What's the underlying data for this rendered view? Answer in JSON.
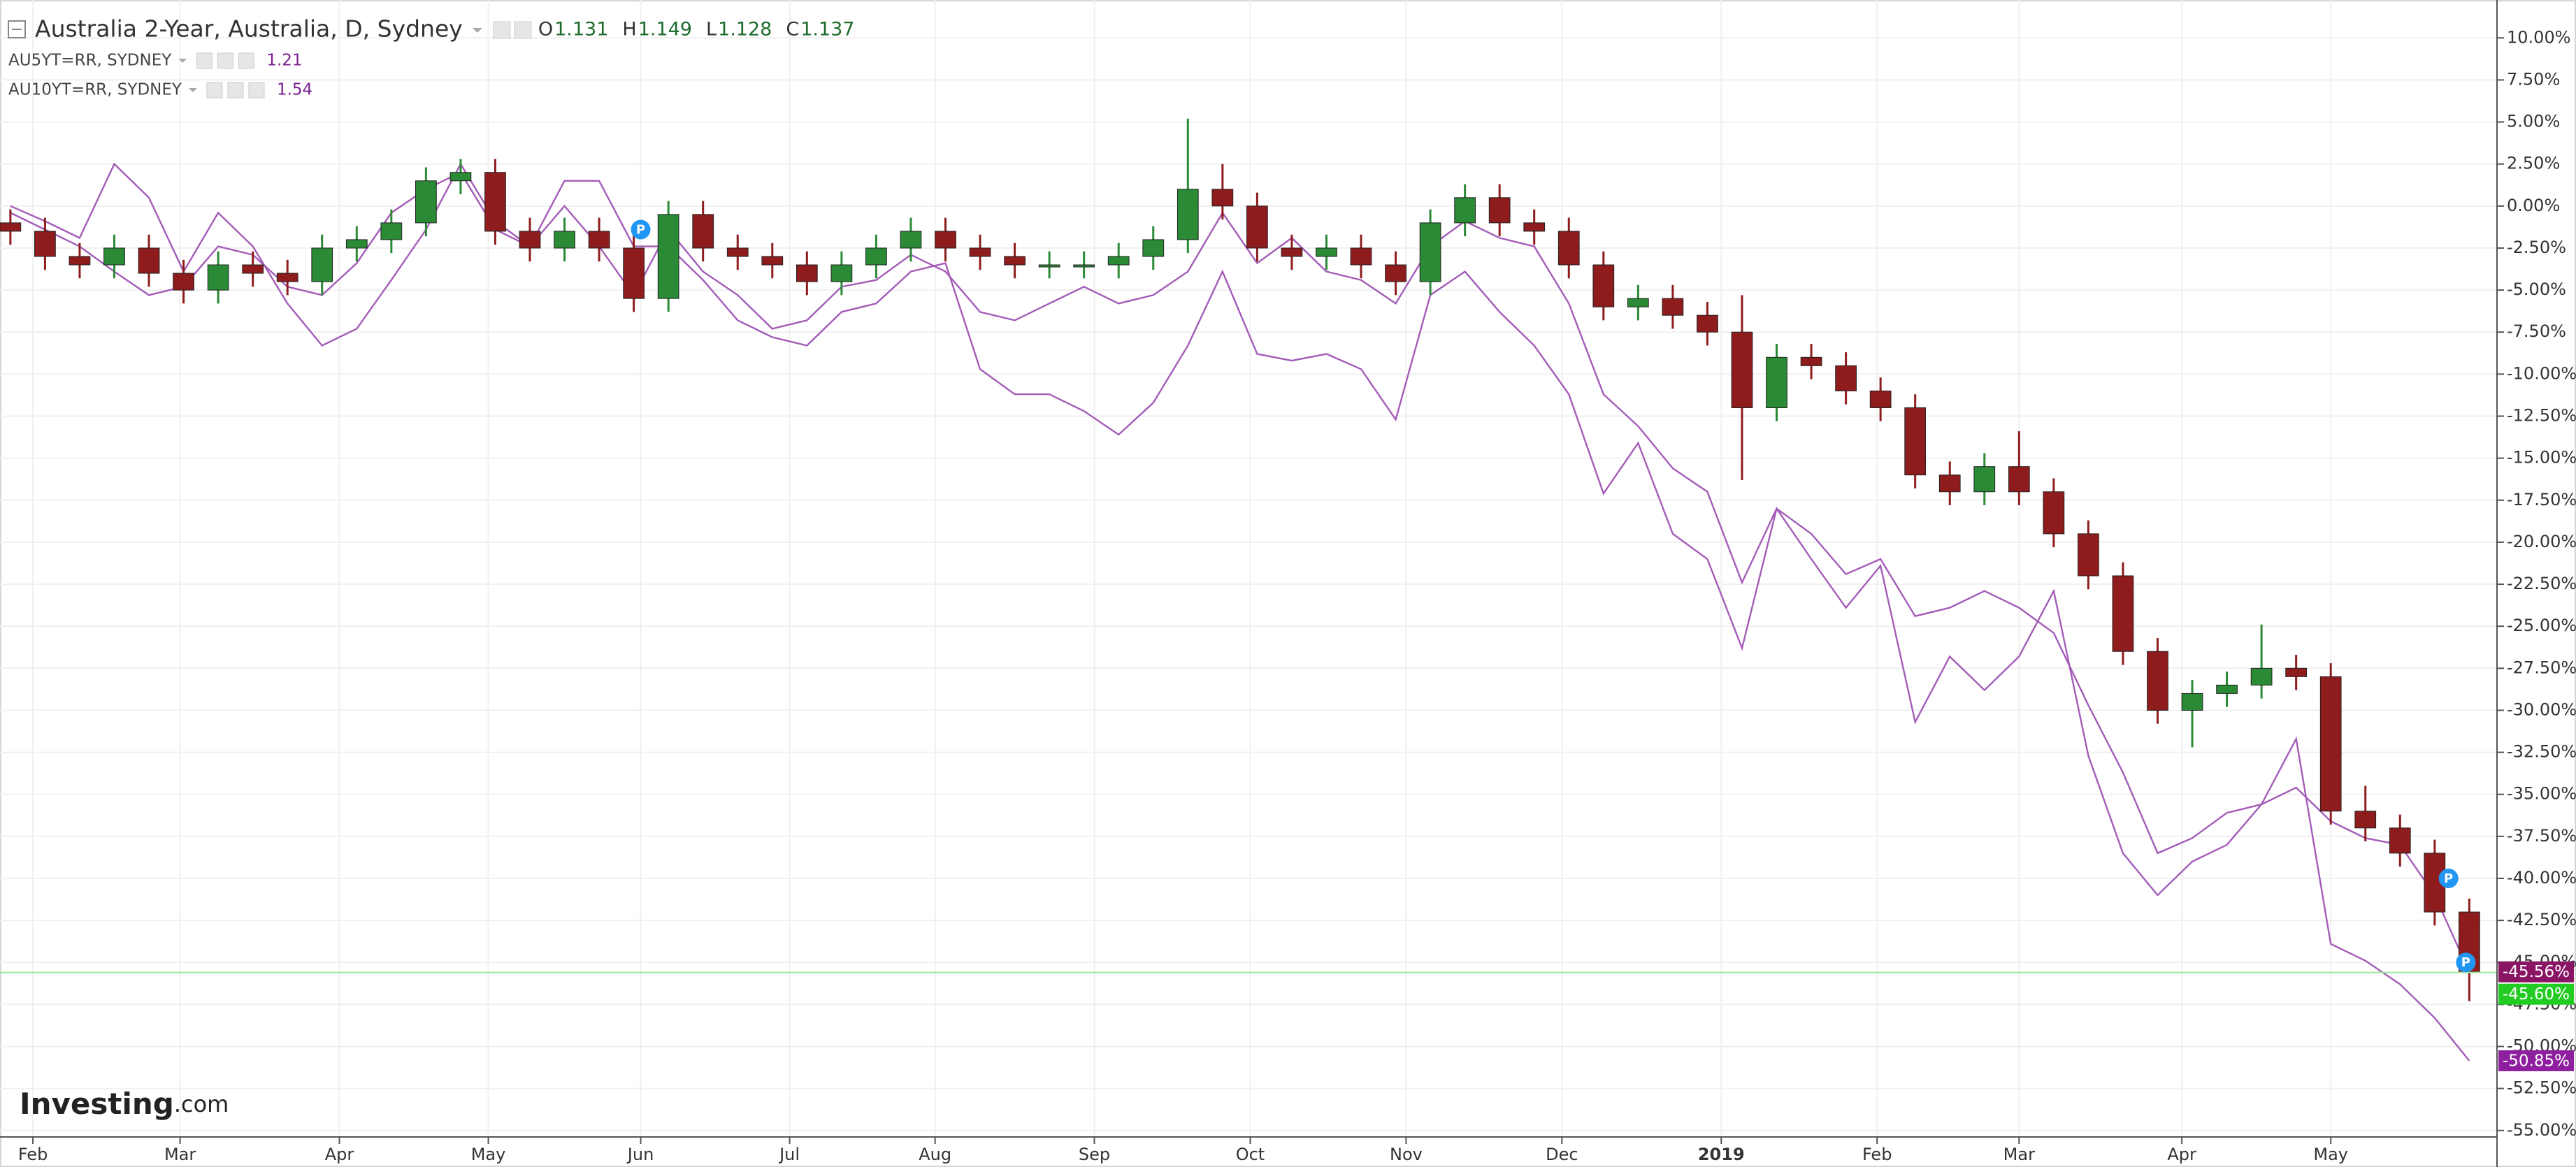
{
  "chart_data": {
    "type": "candlestick",
    "title": "Australia 2-Year, Australia, D, Sydney",
    "ohlc_legend": [
      {
        "key": "O",
        "value": 1.131
      },
      {
        "key": "H",
        "value": 1.149
      },
      {
        "key": "L",
        "value": 1.128
      },
      {
        "key": "C",
        "value": 1.137
      }
    ],
    "up_color": "#2a8a35",
    "down_color": "#8e1c1c",
    "x": [
      0,
      1,
      2,
      3,
      4,
      5,
      6,
      7,
      8,
      9,
      10,
      11,
      12,
      13,
      14,
      15,
      16,
      17,
      18,
      19,
      20,
      21,
      22,
      23,
      24,
      25,
      26,
      27,
      28,
      29,
      30,
      31,
      32,
      33,
      34,
      35,
      36,
      37,
      38,
      39,
      40,
      41,
      42,
      43,
      44,
      45,
      46,
      47,
      48,
      49,
      50,
      51,
      52,
      53,
      54,
      55,
      56,
      57,
      58,
      59,
      60,
      61,
      62,
      63,
      64,
      65,
      66,
      67,
      68,
      69,
      70,
      71
    ],
    "open": [
      -1,
      -1.5,
      -3,
      -3.5,
      -2.5,
      -4,
      -5,
      -3.5,
      -4,
      -4.5,
      -2.5,
      -2,
      -1,
      1.5,
      2,
      -1.5,
      -2.5,
      -1.5,
      -2.5,
      -5.5,
      -0.5,
      -2.5,
      -3,
      -3.5,
      -4.5,
      -3.5,
      -2.5,
      -1.5,
      -2.5,
      -3,
      -3.5,
      -3.5,
      -3.5,
      -3,
      -2,
      1,
      0,
      -2.5,
      -3,
      -2.5,
      -3.5,
      -4.5,
      -1,
      0.5,
      -1,
      -1.5,
      -3.5,
      -6,
      -5.5,
      -6.5,
      -7.5,
      -12,
      -9,
      -9.5,
      -11,
      -12,
      -16,
      -17,
      -15.5,
      -17,
      -19.5,
      -22,
      -26.5,
      -30,
      -29,
      -28.5,
      -27.5,
      -28,
      -36,
      -37,
      -38.5,
      -42
    ],
    "high": [
      -0.2,
      -0.7,
      -2.2,
      -1.7,
      -1.7,
      -3.2,
      -2.7,
      -2.7,
      -3.2,
      -1.7,
      -1.2,
      -0.2,
      2.3,
      2.8,
      2.8,
      -0.7,
      -0.7,
      -0.7,
      -1.7,
      0.3,
      0.3,
      -1.7,
      -2.2,
      -2.7,
      -2.7,
      -1.7,
      -0.7,
      -0.7,
      -1.7,
      -2.2,
      -2.7,
      -2.7,
      -2.2,
      -1.2,
      5.2,
      2.5,
      0.8,
      -1.7,
      -1.7,
      -1.7,
      -2.7,
      -0.2,
      1.3,
      1.3,
      -0.2,
      -0.7,
      -2.7,
      -4.7,
      -4.7,
      -5.7,
      -5.3,
      -8.2,
      -8.2,
      -8.7,
      -10.2,
      -11.2,
      -15.2,
      -14.7,
      -13.4,
      -16.2,
      -18.7,
      -21.2,
      -25.7,
      -28.2,
      -27.7,
      -24.9,
      -26.7,
      -27.2,
      -34.5,
      -36.2,
      -37.7,
      -41.2
    ],
    "low": [
      -2.3,
      -3.8,
      -4.3,
      -4.3,
      -4.8,
      -5.8,
      -5.8,
      -4.8,
      -5.3,
      -5.3,
      -3.3,
      -2.8,
      -1.8,
      0.7,
      -2.3,
      -3.3,
      -3.3,
      -3.3,
      -6.3,
      -6.3,
      -3.3,
      -3.8,
      -4.3,
      -5.3,
      -5.3,
      -4.3,
      -3.3,
      -3.3,
      -3.8,
      -4.3,
      -4.3,
      -4.3,
      -4.3,
      -3.8,
      -2.8,
      -0.8,
      -3.3,
      -3.8,
      -3.8,
      -4.3,
      -5.3,
      -5.3,
      -1.8,
      -1.8,
      -2.3,
      -4.3,
      -6.8,
      -6.8,
      -7.3,
      -8.3,
      -16.3,
      -12.8,
      -10.3,
      -11.8,
      -12.8,
      -16.8,
      -17.8,
      -17.8,
      -17.8,
      -20.3,
      -22.8,
      -27.3,
      -30.8,
      -32.2,
      -29.8,
      -29.3,
      -28.8,
      -36.8,
      -37.8,
      -39.3,
      -42.8,
      -47.3
    ],
    "close": [
      -1.5,
      -3,
      -3.5,
      -2.5,
      -4,
      -5,
      -3.5,
      -4,
      -4.5,
      -2.5,
      -2,
      -1,
      1.5,
      2,
      -1.5,
      -2.5,
      -1.5,
      -2.5,
      -5.5,
      -0.5,
      -2.5,
      -3,
      -3.5,
      -4.5,
      -3.5,
      -2.5,
      -1.5,
      -2.5,
      -3,
      -3.5,
      -3.5,
      -3.5,
      -3,
      -2,
      1,
      0,
      -2.5,
      -3,
      -2.5,
      -3.5,
      -4.5,
      -1,
      0.5,
      -1,
      -1.5,
      -3.5,
      -6,
      -5.5,
      -6.5,
      -7.5,
      -12,
      -9,
      -9.5,
      -11,
      -12,
      -16,
      -17,
      -15.5,
      -17,
      -19.5,
      -22,
      -26.5,
      -30,
      -29,
      -28.5,
      -27.5,
      -28,
      -36,
      -37,
      -38.5,
      -42,
      -45.6
    ],
    "last_label": {
      "value": -45.6,
      "label": "-45.60%",
      "color": "#22cc22",
      "line_color": "#9be89b"
    },
    "series": [
      {
        "name": "AU5YT=RR, SYDNEY",
        "legend_value": 1.21,
        "color": "#a45cb8",
        "last_label": {
          "value": -45.56,
          "label": "-45.56%",
          "color": "#8b1565"
        },
        "values": [
          -0.4,
          -1.4,
          -2.4,
          -3.9,
          -5.3,
          -4.8,
          -2.4,
          -2.9,
          -4.8,
          -5.3,
          -3.4,
          -0.4,
          1.0,
          2.0,
          -1.4,
          -2.4,
          0.0,
          -2.4,
          -5.3,
          -1.4,
          -3.9,
          -5.3,
          -7.3,
          -6.8,
          -4.8,
          -4.4,
          -2.9,
          -3.9,
          -6.3,
          -6.8,
          -5.8,
          -4.8,
          -5.8,
          -5.3,
          -3.9,
          -0.4,
          -3.4,
          -1.9,
          -3.9,
          -4.4,
          -5.8,
          -2.4,
          -0.9,
          -1.9,
          -2.4,
          -5.8,
          -11.2,
          -13.1,
          -15.6,
          -17.0,
          -22.4,
          -18.0,
          -19.5,
          -21.9,
          -21.0,
          -24.4,
          -23.9,
          -22.9,
          -23.9,
          -25.4,
          -29.7,
          -33.7,
          -38.5,
          -37.6,
          -36.1,
          -35.6,
          -34.6,
          -36.6,
          -37.6,
          -38.0,
          -41.0,
          -45.56
        ]
      },
      {
        "name": "AU10YT=RR, SYDNEY",
        "legend_value": 1.54,
        "color": "#a45cb8",
        "last_label": {
          "value": -50.85,
          "label": "-50.85%",
          "color": "#8e1f9e"
        },
        "values": [
          0.0,
          -0.9,
          -1.9,
          2.5,
          0.5,
          -3.9,
          -0.4,
          -2.4,
          -5.8,
          -8.3,
          -7.3,
          -4.4,
          -1.4,
          2.5,
          -0.9,
          -2.4,
          1.5,
          1.5,
          -2.4,
          -2.4,
          -4.4,
          -6.8,
          -7.8,
          -8.3,
          -6.3,
          -5.8,
          -3.9,
          -3.4,
          -9.7,
          -11.2,
          -11.2,
          -12.2,
          -13.6,
          -11.7,
          -8.3,
          -3.9,
          -8.8,
          -9.2,
          -8.8,
          -9.7,
          -12.7,
          -5.3,
          -3.9,
          -6.3,
          -8.3,
          -11.2,
          -17.1,
          -14.1,
          -19.5,
          -21.0,
          -26.3,
          -18.0,
          -21.0,
          -23.9,
          -21.4,
          -30.7,
          -26.8,
          -28.8,
          -26.8,
          -22.9,
          -32.7,
          -38.5,
          -41.0,
          -39.0,
          -38.0,
          -35.6,
          -31.7,
          -43.9,
          -44.9,
          -46.3,
          -48.3,
          -50.85
        ]
      }
    ],
    "markers": [
      {
        "x": 18.2,
        "y": -1.4,
        "label": "P"
      },
      {
        "x": 70.4,
        "y": -40.0,
        "label": "P"
      },
      {
        "x": 70.9,
        "y": -45.0,
        "label": "P"
      }
    ],
    "watermark": [
      "Investing",
      ".com"
    ],
    "xlim": [
      -0.3,
      71.8
    ],
    "xticks": [
      {
        "value": 0.65,
        "label": "Feb"
      },
      {
        "value": 4.9,
        "label": "Mar"
      },
      {
        "value": 9.5,
        "label": "Apr"
      },
      {
        "value": 13.8,
        "label": "May"
      },
      {
        "value": 18.2,
        "label": "Jun"
      },
      {
        "value": 22.5,
        "label": "Jul"
      },
      {
        "value": 26.7,
        "label": "Aug"
      },
      {
        "value": 31.3,
        "label": "Sep"
      },
      {
        "value": 35.8,
        "label": "Oct"
      },
      {
        "value": 40.3,
        "label": "Nov"
      },
      {
        "value": 44.8,
        "label": "Dec"
      },
      {
        "value": 49.4,
        "label": "2019"
      },
      {
        "value": 53.9,
        "label": "Feb"
      },
      {
        "value": 58.0,
        "label": "Mar"
      },
      {
        "value": 62.7,
        "label": "Apr"
      },
      {
        "value": 67.0,
        "label": "May"
      }
    ],
    "ylim": [
      -55.3,
      11.8
    ],
    "yticks": [
      {
        "value": 10,
        "label": "10.00%"
      },
      {
        "value": 7.5,
        "label": "7.50%"
      },
      {
        "value": 5,
        "label": "5.00%"
      },
      {
        "value": 2.5,
        "label": "2.50%"
      },
      {
        "value": 0,
        "label": "0.00%"
      },
      {
        "value": -2.5,
        "label": "-2.50%"
      },
      {
        "value": -5,
        "label": "-5.00%"
      },
      {
        "value": -7.5,
        "label": "-7.50%"
      },
      {
        "value": -10,
        "label": "-10.00%"
      },
      {
        "value": -12.5,
        "label": "-12.50%"
      },
      {
        "value": -15,
        "label": "-15.00%"
      },
      {
        "value": -17.5,
        "label": "-17.50%"
      },
      {
        "value": -20,
        "label": "-20.00%"
      },
      {
        "value": -22.5,
        "label": "-22.50%"
      },
      {
        "value": -25,
        "label": "-25.00%"
      },
      {
        "value": -27.5,
        "label": "-27.50%"
      },
      {
        "value": -30,
        "label": "-30.00%"
      },
      {
        "value": -32.5,
        "label": "-32.50%"
      },
      {
        "value": -35,
        "label": "-35.00%"
      },
      {
        "value": -37.5,
        "label": "-37.50%"
      },
      {
        "value": -40,
        "label": "-40.00%"
      },
      {
        "value": -42.5,
        "label": "-42.50%"
      },
      {
        "value": -45,
        "label": "-45.00%"
      },
      {
        "value": -47.5,
        "label": "-47.50%"
      },
      {
        "value": -50,
        "label": "-50.00%"
      },
      {
        "value": -52.5,
        "label": "-52.50%"
      },
      {
        "value": -55,
        "label": "-55.00%"
      }
    ],
    "grid": true
  }
}
